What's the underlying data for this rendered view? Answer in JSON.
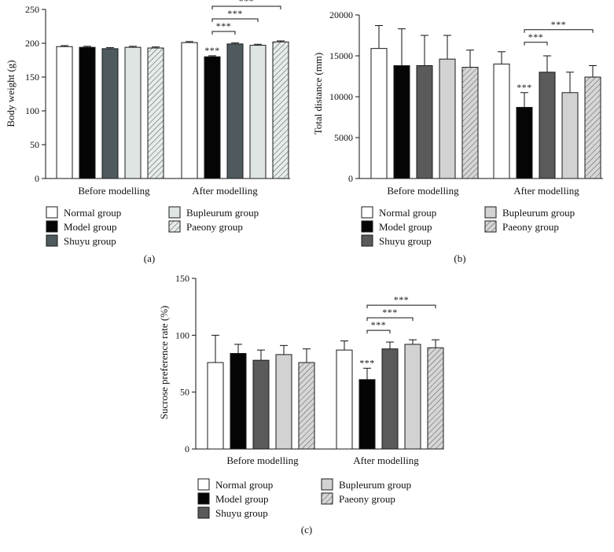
{
  "colors": {
    "normal": "#ffffff",
    "model": "#050505",
    "shuyu": "#4e5a5e",
    "bupleurum": "#dfe5e3",
    "paeony": "#e6ecea",
    "edge": "#1a1a1a"
  },
  "legend_items": [
    {
      "key": "normal",
      "label": "Normal group"
    },
    {
      "key": "model",
      "label": "Model group"
    },
    {
      "key": "shuyu",
      "label": "Shuyu group"
    },
    {
      "key": "bupleurum",
      "label": "Bupleurum group"
    },
    {
      "key": "paeony",
      "label": "Paeony group"
    }
  ],
  "chart_data": [
    {
      "panel_label": "(a)",
      "type": "bar",
      "ylabel": "Body weight (g)",
      "ylim": [
        0,
        250
      ],
      "yticks": [
        "0",
        "50",
        "100",
        "150",
        "200",
        "250"
      ],
      "categories": [
        "Before modelling",
        "After modelling"
      ],
      "series": [
        {
          "name": "Normal group",
          "key": "normal",
          "values": [
            195,
            201
          ],
          "errors": [
            1.5,
            1.5
          ]
        },
        {
          "name": "Model group",
          "key": "model",
          "values": [
            194,
            180
          ],
          "errors": [
            1.5,
            1.5
          ]
        },
        {
          "name": "Shuyu group",
          "key": "shuyu",
          "values": [
            192,
            199
          ],
          "errors": [
            1.5,
            1.5
          ]
        },
        {
          "name": "Bupleurum group",
          "key": "bupleurum",
          "values": [
            194,
            197
          ],
          "errors": [
            1.5,
            1.5
          ]
        },
        {
          "name": "Paeony group",
          "key": "paeony",
          "values": [
            193,
            202
          ],
          "errors": [
            1.5,
            1.5
          ]
        }
      ],
      "bar_annotations": [
        {
          "series": 1,
          "category": 1,
          "text": "***"
        }
      ],
      "comparisons": [
        {
          "category": 1,
          "from": 1,
          "to": 2,
          "text": "***"
        },
        {
          "category": 1,
          "from": 1,
          "to": 3,
          "text": "***"
        },
        {
          "category": 1,
          "from": 1,
          "to": 4,
          "text": "***"
        }
      ]
    },
    {
      "panel_label": "(b)",
      "type": "bar",
      "ylabel": "Total distance (mm)",
      "ylim": [
        0,
        20000
      ],
      "yticks": [
        "0",
        "5000",
        "10000",
        "15000",
        "20000"
      ],
      "categories": [
        "Before modelling",
        "After modelling"
      ],
      "series": [
        {
          "name": "Normal group",
          "key": "normal",
          "values": [
            15900,
            14000
          ],
          "errors": [
            2800,
            1500
          ]
        },
        {
          "name": "Model group",
          "key": "model",
          "values": [
            13800,
            8700
          ],
          "errors": [
            4500,
            1800
          ]
        },
        {
          "name": "Shuyu group",
          "key": "shuyu",
          "values": [
            13800,
            13000
          ],
          "errors": [
            3700,
            2000
          ]
        },
        {
          "name": "Bupleurum group",
          "key": "bupleurum",
          "values": [
            14600,
            10500
          ],
          "errors": [
            2900,
            2500
          ]
        },
        {
          "name": "Paeony group",
          "key": "paeony",
          "values": [
            13600,
            12400
          ],
          "errors": [
            2100,
            1400
          ]
        }
      ],
      "bar_annotations": [
        {
          "series": 1,
          "category": 1,
          "text": "***"
        }
      ],
      "comparisons": [
        {
          "category": 1,
          "from": 1,
          "to": 2,
          "text": "***"
        },
        {
          "category": 1,
          "from": 1,
          "to": 4,
          "text": "***"
        }
      ]
    },
    {
      "panel_label": "(c)",
      "type": "bar",
      "ylabel": "Sucrose preference rate (%)",
      "ylim": [
        0,
        150
      ],
      "yticks": [
        "0",
        "50",
        "100",
        "150"
      ],
      "categories": [
        "Before modelling",
        "After modelling"
      ],
      "series": [
        {
          "name": "Normal group",
          "key": "normal",
          "values": [
            76,
            87
          ],
          "errors": [
            24,
            8
          ]
        },
        {
          "name": "Model group",
          "key": "model",
          "values": [
            84,
            61
          ],
          "errors": [
            8,
            10
          ]
        },
        {
          "name": "Shuyu group",
          "key": "shuyu",
          "values": [
            78,
            88
          ],
          "errors": [
            9,
            6
          ]
        },
        {
          "name": "Bupleurum group",
          "key": "bupleurum",
          "values": [
            83,
            92
          ],
          "errors": [
            8,
            4
          ]
        },
        {
          "name": "Paeony group",
          "key": "paeony",
          "values": [
            76,
            89
          ],
          "errors": [
            12,
            7
          ]
        }
      ],
      "bar_annotations": [
        {
          "series": 1,
          "category": 1,
          "text": "***"
        }
      ],
      "comparisons": [
        {
          "category": 1,
          "from": 1,
          "to": 2,
          "text": "***"
        },
        {
          "category": 1,
          "from": 1,
          "to": 3,
          "text": "***"
        },
        {
          "category": 1,
          "from": 1,
          "to": 4,
          "text": "***"
        }
      ]
    }
  ]
}
